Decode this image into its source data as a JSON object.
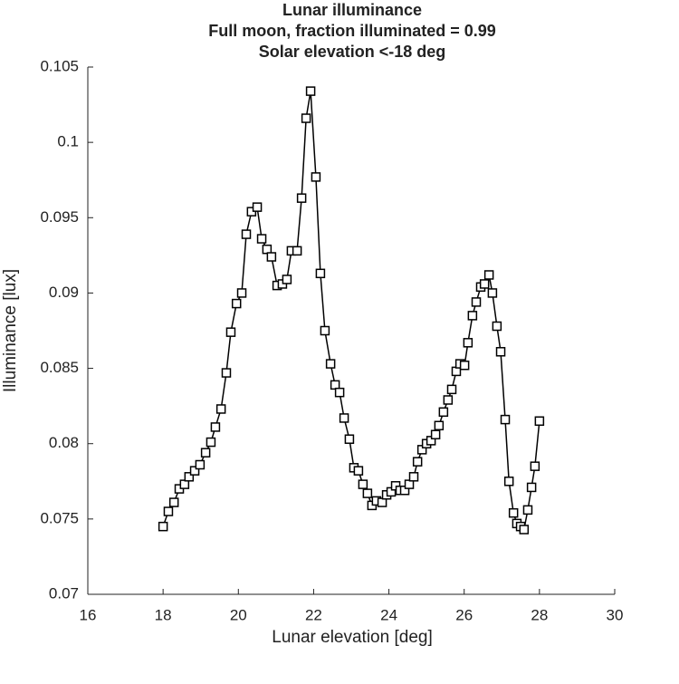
{
  "chart_data": {
    "type": "line",
    "title": "Lunar illuminance",
    "subtitle": [
      "Full moon, fraction illuminated = 0.99",
      "Solar elevation <-18 deg"
    ],
    "x_label": "Lunar elevation [deg]",
    "y_label": "Illuminance [lux]",
    "color": "#000000",
    "marker": "square",
    "xlim": [
      16,
      30
    ],
    "xticks": [
      16,
      18,
      20,
      22,
      24,
      26,
      28,
      30
    ],
    "ylim": [
      0.07,
      0.105
    ],
    "yticks": [
      0.07,
      0.075,
      0.08,
      0.085,
      0.09,
      0.095,
      0.1,
      0.105
    ],
    "grid": false,
    "x": [
      18.0,
      18.14,
      18.29,
      18.43,
      18.57,
      18.69,
      18.84,
      18.98,
      19.13,
      19.27,
      19.39,
      19.54,
      19.68,
      19.8,
      19.95,
      20.09,
      20.21,
      20.35,
      20.5,
      20.62,
      20.76,
      20.88,
      21.03,
      21.17,
      21.29,
      21.41,
      21.56,
      21.68,
      21.8,
      21.92,
      22.06,
      22.18,
      22.3,
      22.45,
      22.57,
      22.69,
      22.81,
      22.95,
      23.07,
      23.19,
      23.31,
      23.43,
      23.55,
      23.67,
      23.82,
      23.94,
      24.06,
      24.18,
      24.3,
      24.42,
      24.54,
      24.66,
      24.76,
      24.88,
      25.0,
      25.12,
      25.24,
      25.33,
      25.45,
      25.57,
      25.67,
      25.79,
      25.89,
      26.01,
      26.1,
      26.22,
      26.32,
      26.44,
      26.54,
      26.66,
      26.75,
      26.87,
      26.97,
      27.09,
      27.19,
      27.31,
      27.4,
      27.5,
      27.59,
      27.69,
      27.79,
      27.88,
      28.0
    ],
    "values": [
      0.0745,
      0.0755,
      0.0761,
      0.077,
      0.0773,
      0.0778,
      0.0782,
      0.0786,
      0.0794,
      0.0801,
      0.0811,
      0.0823,
      0.0847,
      0.0874,
      0.0893,
      0.09,
      0.0939,
      0.0954,
      0.0957,
      0.0936,
      0.0929,
      0.0924,
      0.0905,
      0.0906,
      0.0909,
      0.0928,
      0.0928,
      0.0963,
      0.1016,
      0.1034,
      0.0977,
      0.0913,
      0.0875,
      0.0853,
      0.0839,
      0.0834,
      0.0817,
      0.0803,
      0.0784,
      0.0782,
      0.0773,
      0.0767,
      0.0759,
      0.0762,
      0.0761,
      0.0766,
      0.0768,
      0.0772,
      0.0769,
      0.0769,
      0.0773,
      0.0778,
      0.0788,
      0.0796,
      0.08,
      0.0802,
      0.0806,
      0.0812,
      0.0821,
      0.0829,
      0.0836,
      0.0848,
      0.0853,
      0.0852,
      0.0867,
      0.0885,
      0.0894,
      0.0904,
      0.0906,
      0.0912,
      0.09,
      0.0878,
      0.0861,
      0.0816,
      0.0775,
      0.0754,
      0.0747,
      0.0745,
      0.0743,
      0.0756,
      0.0771,
      0.0785,
      0.0815
    ]
  }
}
